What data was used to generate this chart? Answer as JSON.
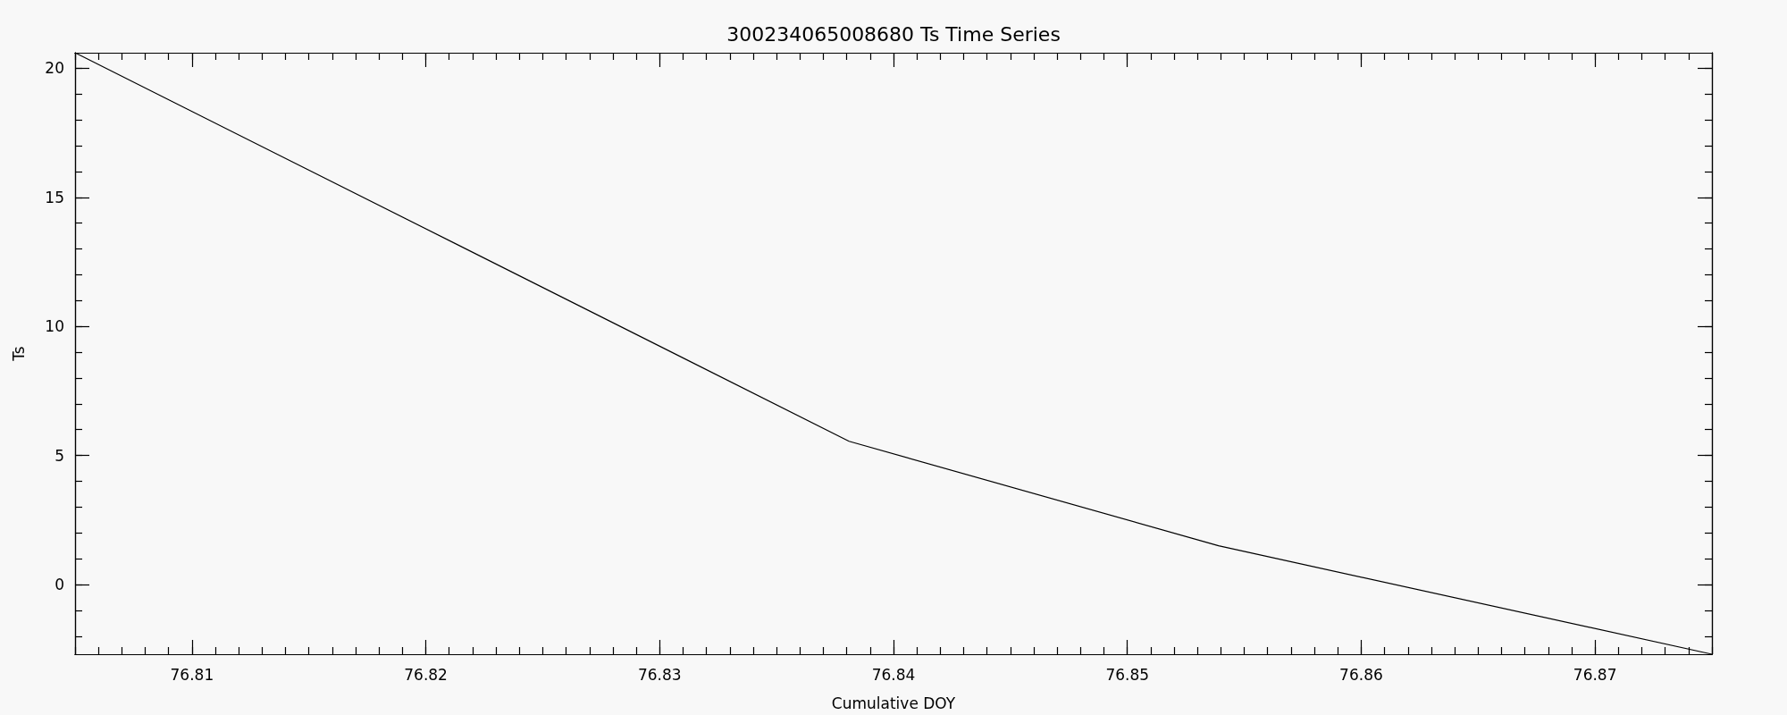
{
  "chart_data": {
    "type": "line",
    "title": "300234065008680 Ts Time Series",
    "xlabel": "Cumulative DOY",
    "ylabel": "Ts",
    "x": [
      76.805,
      76.8381,
      76.8539,
      76.875
    ],
    "values": [
      20.6,
      5.55,
      1.5,
      -2.7
    ],
    "color": "#000000",
    "xlim": [
      76.805,
      76.875
    ],
    "xticks": [
      76.81,
      76.82,
      76.83,
      76.84,
      76.85,
      76.86,
      76.87
    ],
    "ylim": [
      -2.7,
      20.6
    ],
    "yticks": [
      0,
      5,
      10,
      15,
      20
    ],
    "grid": false,
    "marker": "none",
    "line_style": "solid"
  }
}
